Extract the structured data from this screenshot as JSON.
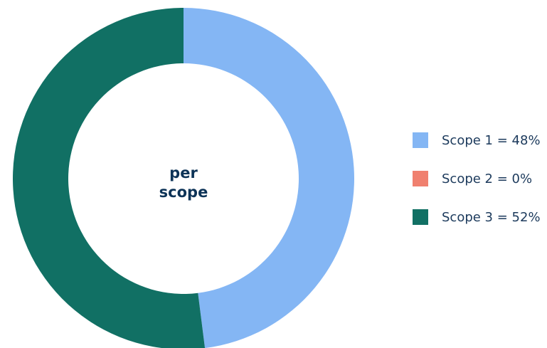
{
  "chart_data": {
    "type": "pie",
    "donut": true,
    "center_label": [
      "per",
      "scope"
    ],
    "legend_position": "right",
    "categories": [
      "Scope 1",
      "Scope 2",
      "Scope 3"
    ],
    "values": [
      48,
      0,
      52
    ],
    "colors": [
      "#84b6f4",
      "#f0806f",
      "#117064"
    ],
    "legend": [
      {
        "label": "Scope 1 = 48%",
        "color": "#84b6f4"
      },
      {
        "label": "Scope 2 = 0%",
        "color": "#f0806f"
      },
      {
        "label": "Scope 3 = 52%",
        "color": "#117064"
      }
    ]
  }
}
